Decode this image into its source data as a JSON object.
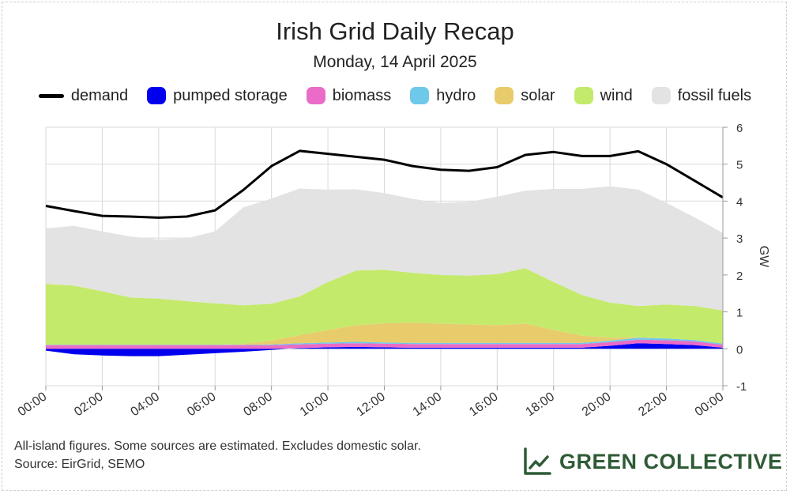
{
  "colors": {
    "demand": "#000000",
    "pumped_storage": "#0000ee",
    "biomass": "#ea6cc8",
    "hydro": "#6ec8ea",
    "solar": "#e8cc6c",
    "wind": "#c4ea6c",
    "fossil": "#e3e3e3",
    "brand": "#2e5b36"
  },
  "footer": {
    "note": "All-island figures. Some sources are estimated. Excludes domestic solar.",
    "source": "Source: EirGrid, SEMO"
  },
  "brand": {
    "name": "GREEN COLLECTIVE",
    "icon": "chart-line-icon"
  },
  "chart_data": {
    "type": "area",
    "title": "Irish Grid Daily Recap",
    "subtitle": "Monday, 14 April 2025",
    "ylabel": "GW",
    "xlabel": "",
    "ylim": [
      -1,
      6
    ],
    "yticks": [
      "-1",
      "0",
      "1",
      "2",
      "3",
      "4",
      "5",
      "6"
    ],
    "xlim": [
      0,
      24
    ],
    "xticks": [
      "00:00",
      "02:00",
      "04:00",
      "06:00",
      "08:00",
      "10:00",
      "12:00",
      "14:00",
      "16:00",
      "18:00",
      "20:00",
      "22:00",
      "00:00"
    ],
    "grid": true,
    "legend_position": "top",
    "legend": [
      {
        "label": "demand",
        "key": "demand",
        "kind": "line"
      },
      {
        "label": "pumped storage",
        "key": "pumped_storage",
        "kind": "area"
      },
      {
        "label": "biomass",
        "key": "biomass",
        "kind": "area"
      },
      {
        "label": "hydro",
        "key": "hydro",
        "kind": "area"
      },
      {
        "label": "solar",
        "key": "solar",
        "kind": "area"
      },
      {
        "label": "wind",
        "key": "wind",
        "kind": "area"
      },
      {
        "label": "fossil fuels",
        "key": "fossil",
        "kind": "area"
      }
    ],
    "x": [
      0,
      1,
      2,
      3,
      4,
      5,
      6,
      7,
      8,
      9,
      10,
      11,
      12,
      13,
      14,
      15,
      16,
      17,
      18,
      19,
      20,
      21,
      22,
      23,
      24
    ],
    "series": [
      {
        "name": "pumped storage",
        "key": "pumped_storage",
        "values": [
          -0.05,
          -0.15,
          -0.18,
          -0.2,
          -0.2,
          -0.16,
          -0.12,
          -0.08,
          -0.03,
          0.02,
          0.04,
          0.05,
          0.04,
          0.03,
          0.03,
          0.03,
          0.03,
          0.03,
          0.03,
          0.03,
          0.08,
          0.15,
          0.13,
          0.1,
          0.03
        ]
      },
      {
        "name": "biomass",
        "key": "biomass",
        "values": [
          0.1,
          0.1,
          0.1,
          0.1,
          0.1,
          0.1,
          0.1,
          0.1,
          0.1,
          0.1,
          0.1,
          0.1,
          0.1,
          0.1,
          0.1,
          0.1,
          0.1,
          0.1,
          0.1,
          0.1,
          0.1,
          0.1,
          0.1,
          0.1,
          0.08
        ]
      },
      {
        "name": "hydro",
        "key": "hydro",
        "values": [
          0.01,
          0.01,
          0.01,
          0.01,
          0.01,
          0.01,
          0.01,
          0.01,
          0.02,
          0.03,
          0.03,
          0.04,
          0.03,
          0.03,
          0.03,
          0.03,
          0.03,
          0.03,
          0.03,
          0.03,
          0.04,
          0.05,
          0.05,
          0.04,
          0.03
        ]
      },
      {
        "name": "solar",
        "key": "solar",
        "values": [
          0,
          0,
          0,
          0,
          0,
          0,
          0,
          0.02,
          0.1,
          0.22,
          0.34,
          0.45,
          0.52,
          0.55,
          0.52,
          0.5,
          0.48,
          0.52,
          0.35,
          0.2,
          0.08,
          0.01,
          0,
          0,
          0
        ]
      },
      {
        "name": "wind",
        "key": "wind",
        "values": [
          1.65,
          1.6,
          1.45,
          1.28,
          1.25,
          1.18,
          1.12,
          1.05,
          1.0,
          1.05,
          1.3,
          1.48,
          1.45,
          1.35,
          1.32,
          1.32,
          1.38,
          1.5,
          1.3,
          1.1,
          0.95,
          0.85,
          0.92,
          0.92,
          0.9
        ]
      },
      {
        "name": "fossil fuels",
        "key": "fossil",
        "values": [
          1.5,
          1.62,
          1.62,
          1.65,
          1.6,
          1.7,
          1.95,
          2.65,
          2.85,
          2.92,
          2.5,
          2.2,
          2.08,
          2.0,
          1.95,
          2.0,
          2.1,
          2.1,
          2.52,
          2.87,
          3.15,
          3.15,
          2.75,
          2.4,
          2.1
        ]
      },
      {
        "name": "demand",
        "key": "demand",
        "values": [
          3.87,
          3.73,
          3.6,
          3.58,
          3.55,
          3.58,
          3.75,
          4.3,
          4.95,
          5.36,
          5.28,
          5.2,
          5.12,
          4.95,
          4.85,
          4.82,
          4.92,
          5.25,
          5.33,
          5.22,
          5.22,
          5.35,
          5.0,
          4.55,
          4.1
        ]
      }
    ]
  }
}
